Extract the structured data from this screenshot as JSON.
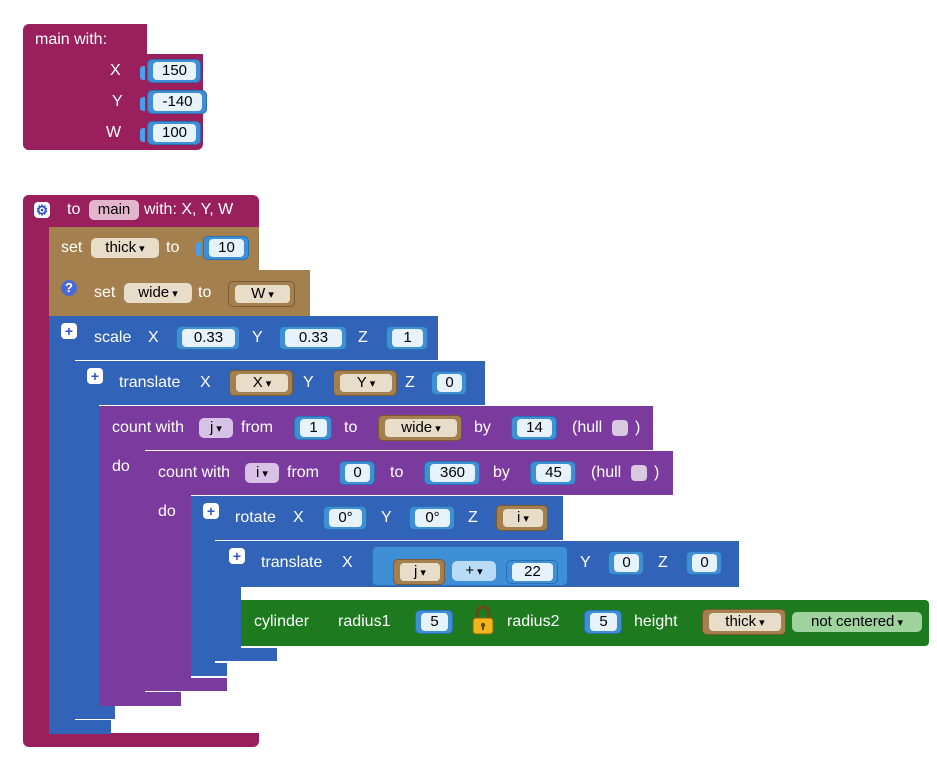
{
  "call_block": {
    "title": "main  with:",
    "args": [
      {
        "name": "X",
        "value": "150"
      },
      {
        "name": "Y",
        "value": "-140"
      },
      {
        "name": "W",
        "value": "100"
      }
    ]
  },
  "func_def": {
    "to_label": "to",
    "name": "main",
    "with_label": "with: X, Y, W",
    "set_thick": {
      "set": "set",
      "var": "thick",
      "to": "to",
      "value": "10"
    },
    "set_wide": {
      "set": "set",
      "var": "wide",
      "to": "to",
      "value_var": "W",
      "help": "?"
    },
    "scale": {
      "label": "scale",
      "x_label": "X",
      "x": "0.33",
      "y_label": "Y",
      "y": "0.33",
      "z_label": "Z",
      "z": "1"
    },
    "translate1": {
      "label": "translate",
      "x_label": "X",
      "x": "X",
      "y_label": "Y",
      "y": "Y",
      "z_label": "Z",
      "z": "0"
    },
    "count_j": {
      "label": "count with",
      "var": "j",
      "from_label": "from",
      "from": "1",
      "to_label": "to",
      "to": "wide",
      "by_label": "by",
      "by": "14",
      "hull_label": "(hull",
      "close": ")",
      "do": "do"
    },
    "count_i": {
      "label": "count with",
      "var": "i",
      "from_label": "from",
      "from": "0",
      "to_label": "to",
      "to": "360",
      "by_label": "by",
      "by": "45",
      "hull_label": "(hull",
      "close": ")",
      "do": "do"
    },
    "rotate": {
      "label": "rotate",
      "x_label": "X",
      "x": "0°",
      "y_label": "Y",
      "y": "0°",
      "z_label": "Z",
      "z": "i"
    },
    "translate2": {
      "label": "translate",
      "x_label": "X",
      "x_var": "j",
      "op": "+",
      "x_num": "22",
      "y_label": "Y",
      "y": "0",
      "z_label": "Z",
      "z": "0"
    },
    "cylinder": {
      "label": "cylinder",
      "r1_label": "radius1",
      "r1": "5",
      "r2_label": "radius2",
      "r2": "5",
      "height_label": "height",
      "height": "thick",
      "center": "not centered"
    }
  },
  "colors": {
    "procedure": "#9a1f5d",
    "variable": "#a5804f",
    "transform": "#3164b8",
    "loop": "#7b3a9e",
    "shape": "#1e7a1e",
    "math": "#3f8fd6"
  },
  "icons": [
    "gear-icon",
    "help-icon",
    "plus-icon",
    "lock-icon"
  ]
}
